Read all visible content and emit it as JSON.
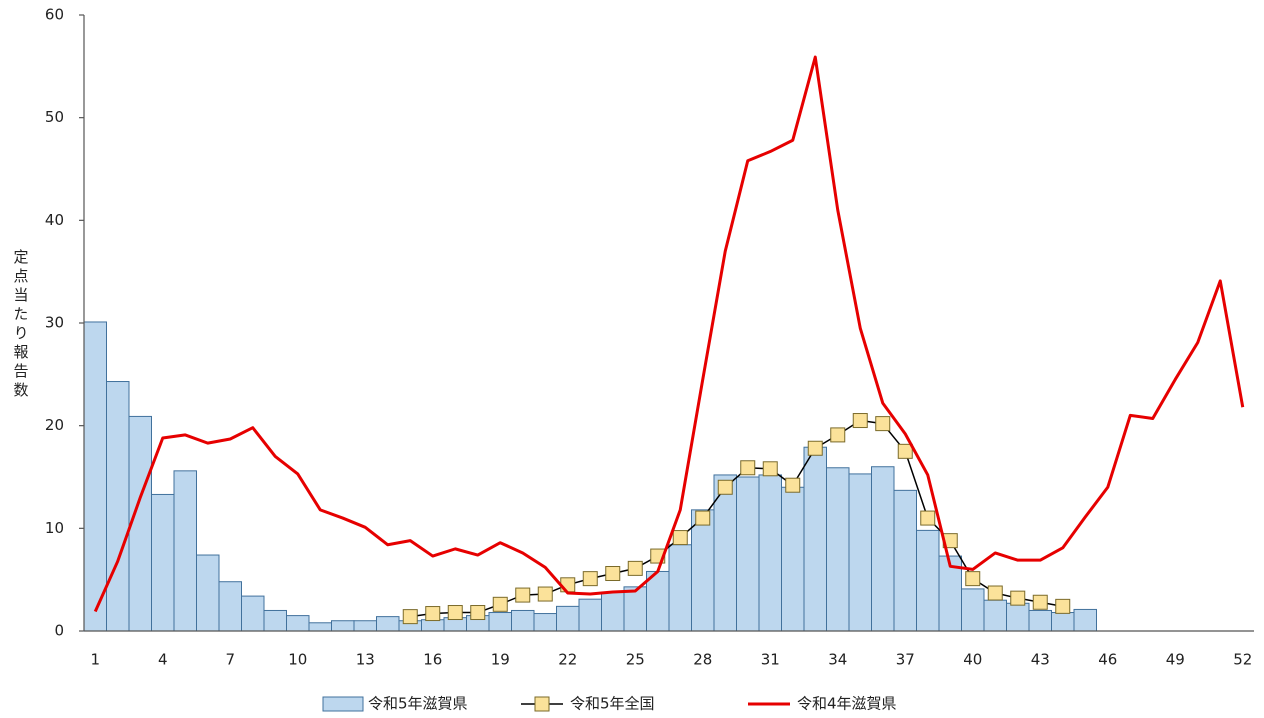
{
  "chart_data": {
    "type": "bar",
    "y_label": "定点当たり報告数",
    "categories": [
      1,
      null,
      null,
      4,
      null,
      null,
      7,
      null,
      null,
      10,
      null,
      null,
      13,
      null,
      null,
      16,
      null,
      null,
      19,
      null,
      null,
      22,
      null,
      null,
      25,
      null,
      null,
      28,
      null,
      null,
      31,
      null,
      null,
      34,
      null,
      null,
      37,
      null,
      null,
      40,
      null,
      null,
      43,
      null,
      null,
      46,
      null,
      null,
      49,
      null,
      null,
      52
    ],
    "ylim": [
      0,
      60
    ],
    "yticks": [
      0,
      10,
      20,
      30,
      40,
      50,
      60
    ],
    "grid": false,
    "legend": "bottom",
    "series": [
      {
        "name": "令和5年滋賀県",
        "type": "bar",
        "color": "#bdd7ee",
        "values": [
          30.1,
          24.3,
          20.9,
          13.3,
          15.6,
          7.4,
          4.8,
          3.4,
          2.0,
          1.5,
          0.8,
          1.0,
          1.0,
          1.4,
          1.0,
          1.1,
          1.3,
          1.5,
          1.8,
          2.0,
          1.7,
          2.4,
          3.1,
          3.8,
          4.3,
          5.8,
          8.4,
          11.8,
          15.2,
          15.0,
          15.2,
          14.0,
          17.9,
          15.9,
          15.3,
          16.0,
          13.7,
          9.8,
          7.3,
          4.1,
          3.0,
          2.7,
          2.0,
          1.8,
          2.1,
          null,
          null,
          null,
          null,
          null,
          null,
          null
        ]
      },
      {
        "name": "令和5年全国",
        "type": "line",
        "color": "#000000",
        "marker_color": "#fbe29a",
        "values": [
          null,
          null,
          null,
          null,
          null,
          null,
          null,
          null,
          null,
          null,
          null,
          null,
          null,
          null,
          1.4,
          1.7,
          1.8,
          1.8,
          2.6,
          3.5,
          3.6,
          4.5,
          5.1,
          5.6,
          6.1,
          7.3,
          9.1,
          11.0,
          14.0,
          15.9,
          15.8,
          14.2,
          17.8,
          19.1,
          20.5,
          20.2,
          17.5,
          11.0,
          8.8,
          5.1,
          3.7,
          3.2,
          2.8,
          2.4,
          null,
          null,
          null,
          null,
          null,
          null,
          null,
          null
        ]
      },
      {
        "name": "令和4年滋賀県",
        "type": "line",
        "color": "#e60000",
        "values": [
          1.9,
          6.8,
          13.0,
          18.8,
          19.1,
          18.3,
          18.7,
          19.8,
          17.0,
          15.3,
          11.8,
          11.0,
          10.1,
          8.4,
          8.8,
          7.3,
          8.0,
          7.4,
          8.6,
          7.6,
          6.2,
          3.7,
          3.6,
          3.8,
          3.9,
          5.8,
          11.8,
          24.5,
          37.0,
          45.8,
          46.7,
          47.8,
          55.9,
          41.0,
          29.5,
          22.2,
          19.2,
          15.2,
          6.3,
          6.0,
          7.6,
          6.9,
          6.9,
          8.1,
          11.1,
          14.0,
          21.0,
          20.7,
          24.5,
          28.1,
          34.1,
          21.8
        ]
      }
    ]
  }
}
